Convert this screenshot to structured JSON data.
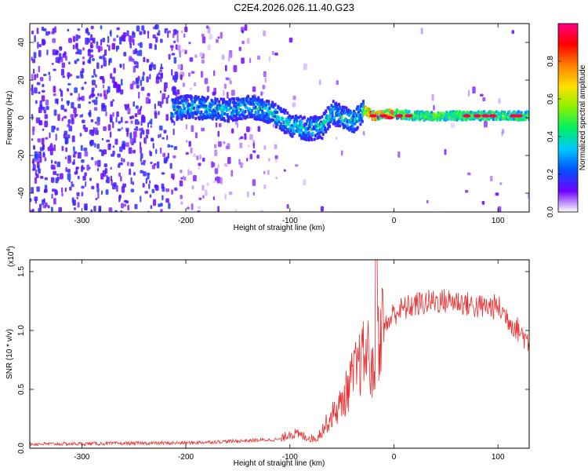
{
  "title": "C2E4.2026.026.11.40.G23",
  "chart_data": [
    {
      "type": "heatmap",
      "name": "spectrogram",
      "xlabel": "Height of straight line (km)",
      "ylabel": "Frequency (Hz)",
      "xlim": [
        -350,
        130
      ],
      "ylim": [
        -50,
        50
      ],
      "xticks": [
        -300,
        -200,
        -100,
        0,
        100
      ],
      "yticks": [
        -40,
        -20,
        0,
        20,
        40
      ],
      "colorbar": {
        "label": "Normalized spectral amplitude",
        "range": [
          0,
          1
        ],
        "ticks": [
          "0.0",
          "0.2",
          "0.4",
          "0.6",
          "0.8"
        ],
        "tick_values": [
          0,
          0.2,
          0.4,
          0.6,
          0.8
        ],
        "colors": [
          "#ffffff",
          "#6f00ff",
          "#0050ff",
          "#00c8ff",
          "#00f060",
          "#8cf000",
          "#ffe000",
          "#ff8000",
          "#ff0000",
          "#ff0080"
        ]
      },
      "ridge": {
        "x": [
          -215,
          -200,
          -180,
          -160,
          -140,
          -120,
          -100,
          -85,
          -70,
          -60,
          -50,
          -40,
          -30,
          -20,
          -10,
          0,
          20,
          40,
          60,
          80,
          100,
          130
        ],
        "freq": [
          4,
          6,
          5,
          4,
          6,
          3,
          -4,
          -6,
          -5,
          3,
          0,
          -2,
          4,
          1,
          2,
          2,
          1,
          1,
          1,
          1,
          1,
          1
        ]
      }
    },
    {
      "type": "line",
      "name": "snr",
      "xlabel": "Height of straight line (km)",
      "ylabel": "SNR (10 * v/v)",
      "scale_label": "(x10",
      "scale_exp": "4",
      "scale_close": ")",
      "xlim": [
        -350,
        130
      ],
      "ylim": [
        0,
        1.6
      ],
      "xticks": [
        -300,
        -200,
        -100,
        0,
        100
      ],
      "yticks": [
        "0.0",
        "0.5",
        "1.0",
        "1.5"
      ],
      "ytick_values": [
        0,
        0.5,
        1.0,
        1.5
      ],
      "color": "#e83030",
      "envelope": {
        "x": [
          -350,
          -200,
          -110,
          -100,
          -90,
          -75,
          -60,
          -50,
          -40,
          -30,
          -25,
          -20,
          -15,
          -10,
          0,
          20,
          40,
          60,
          80,
          100,
          110,
          120,
          130
        ],
        "y": [
          0.02,
          0.03,
          0.06,
          0.12,
          0.1,
          0.07,
          0.25,
          0.35,
          0.55,
          0.7,
          0.75,
          0.55,
          0.85,
          1.0,
          1.15,
          1.22,
          1.25,
          1.25,
          1.2,
          1.2,
          1.1,
          1.0,
          0.9
        ]
      }
    }
  ]
}
